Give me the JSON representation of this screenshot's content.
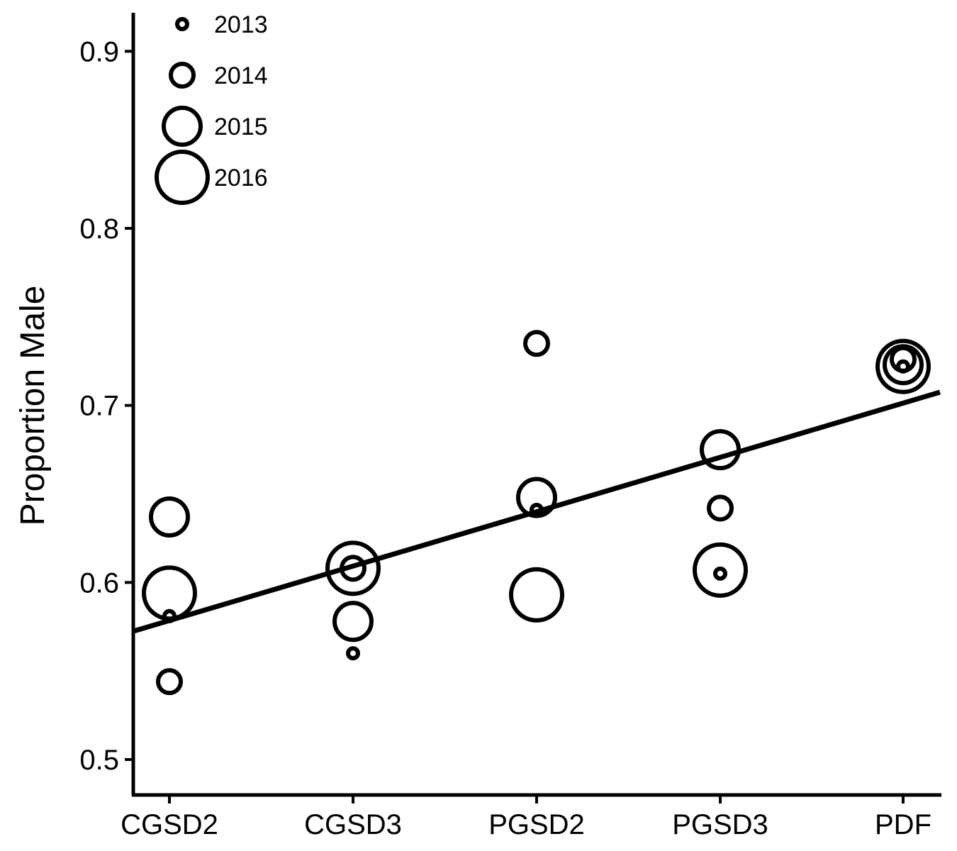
{
  "chart_data": {
    "type": "scatter",
    "ylabel": "Proportion Male",
    "xlabel": "",
    "categories": [
      "CGSD2",
      "CGSD3",
      "PGSD2",
      "PGSD3",
      "PDF"
    ],
    "ylim": [
      0.48,
      0.92
    ],
    "yticks": [
      0.5,
      0.6,
      0.7,
      0.8,
      0.9
    ],
    "ytick_labels": [
      "0.5",
      "0.6",
      "0.7",
      "0.8",
      "0.9"
    ],
    "grid": false,
    "legend": {
      "placement": "top-left",
      "entries": [
        "2013",
        "2014",
        "2015",
        "2016"
      ],
      "encoding": "marker size by year"
    },
    "points": [
      {
        "category": "CGSD2",
        "year": "2013",
        "value": 0.581
      },
      {
        "category": "CGSD2",
        "year": "2014",
        "value": 0.544
      },
      {
        "category": "CGSD2",
        "year": "2015",
        "value": 0.637
      },
      {
        "category": "CGSD2",
        "year": "2016",
        "value": 0.594
      },
      {
        "category": "CGSD3",
        "year": "2013",
        "value": 0.56
      },
      {
        "category": "CGSD3",
        "year": "2014",
        "value": 0.608
      },
      {
        "category": "CGSD3",
        "year": "2015",
        "value": 0.578
      },
      {
        "category": "CGSD3",
        "year": "2016",
        "value": 0.608
      },
      {
        "category": "PGSD2",
        "year": "2013",
        "value": 0.641
      },
      {
        "category": "PGSD2",
        "year": "2014",
        "value": 0.735
      },
      {
        "category": "PGSD2",
        "year": "2015",
        "value": 0.648
      },
      {
        "category": "PGSD2",
        "year": "2016",
        "value": 0.593
      },
      {
        "category": "PGSD3",
        "year": "2013",
        "value": 0.605
      },
      {
        "category": "PGSD3",
        "year": "2014",
        "value": 0.642
      },
      {
        "category": "PGSD3",
        "year": "2015",
        "value": 0.675
      },
      {
        "category": "PGSD3",
        "year": "2016",
        "value": 0.607
      },
      {
        "category": "PDF",
        "year": "2013",
        "value": 0.722
      },
      {
        "category": "PDF",
        "year": "2014",
        "value": 0.726
      },
      {
        "category": "PDF",
        "year": "2015",
        "value": 0.723
      },
      {
        "category": "PDF",
        "year": "2016",
        "value": 0.722
      }
    ],
    "trend_line": {
      "type": "linear fit",
      "at_first_category": 0.5785,
      "at_last_category": 0.7013
    }
  }
}
